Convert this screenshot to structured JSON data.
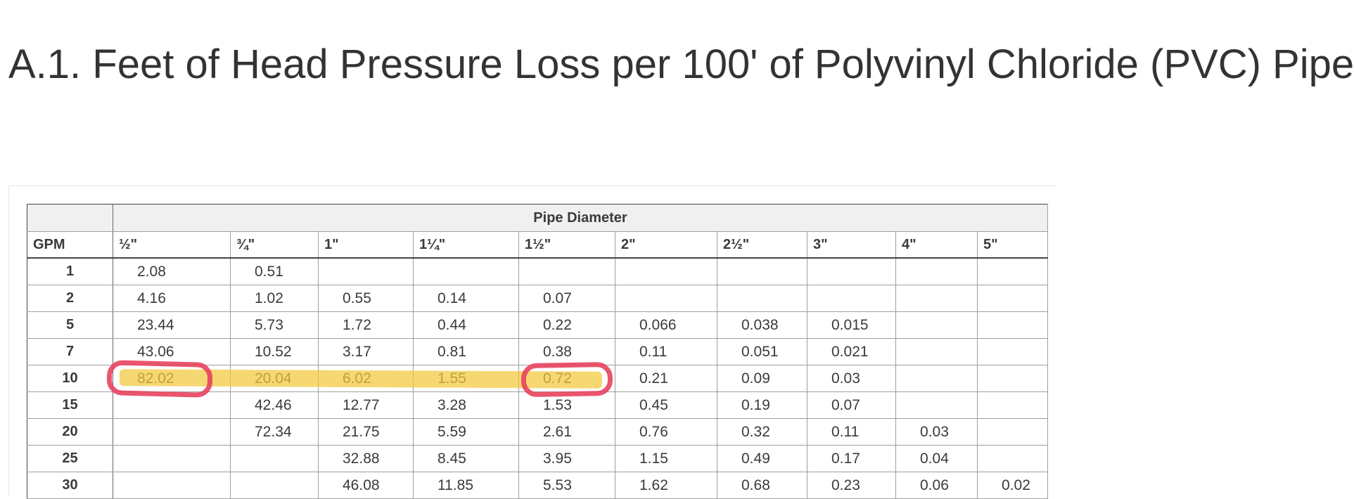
{
  "page": {
    "title": "A.1. Feet of Head Pressure Loss per 100' of Polyvinyl Chloride (PVC) Pipe"
  },
  "table": {
    "group_header": "Pipe Diameter",
    "gpm_header": "GPM",
    "columns": [
      "½\"",
      "¾\"",
      "1\"",
      "1¼\"",
      "1½\"",
      "2\"",
      "2½\"",
      "3\"",
      "4\"",
      "5\""
    ],
    "rows": [
      {
        "gpm": "1",
        "values": [
          "2.08",
          "0.51",
          "",
          "",
          "",
          "",
          "",
          "",
          "",
          ""
        ]
      },
      {
        "gpm": "2",
        "values": [
          "4.16",
          "1.02",
          "0.55",
          "0.14",
          "0.07",
          "",
          "",
          "",
          "",
          ""
        ]
      },
      {
        "gpm": "5",
        "values": [
          "23.44",
          "5.73",
          "1.72",
          "0.44",
          "0.22",
          "0.066",
          "0.038",
          "0.015",
          "",
          ""
        ]
      },
      {
        "gpm": "7",
        "values": [
          "43.06",
          "10.52",
          "3.17",
          "0.81",
          "0.38",
          "0.11",
          "0.051",
          "0.021",
          "",
          ""
        ]
      },
      {
        "gpm": "10",
        "values": [
          "82.02",
          "20.04",
          "6.02",
          "1.55",
          "0.72",
          "0.21",
          "0.09",
          "0.03",
          "",
          ""
        ]
      },
      {
        "gpm": "15",
        "values": [
          "",
          "42.46",
          "12.77",
          "3.28",
          "1.53",
          "0.45",
          "0.19",
          "0.07",
          "",
          ""
        ]
      },
      {
        "gpm": "20",
        "values": [
          "",
          "72.34",
          "21.75",
          "5.59",
          "2.61",
          "0.76",
          "0.32",
          "0.11",
          "0.03",
          ""
        ]
      },
      {
        "gpm": "25",
        "values": [
          "",
          "",
          "32.88",
          "8.45",
          "3.95",
          "1.15",
          "0.49",
          "0.17",
          "0.04",
          ""
        ]
      },
      {
        "gpm": "30",
        "values": [
          "",
          "",
          "46.08",
          "11.85",
          "5.53",
          "1.62",
          "0.68",
          "0.23",
          "0.06",
          "0.02"
        ]
      }
    ]
  },
  "annotations": {
    "highlight_color": "#f3c93b",
    "circle_color": "#e8425e"
  }
}
